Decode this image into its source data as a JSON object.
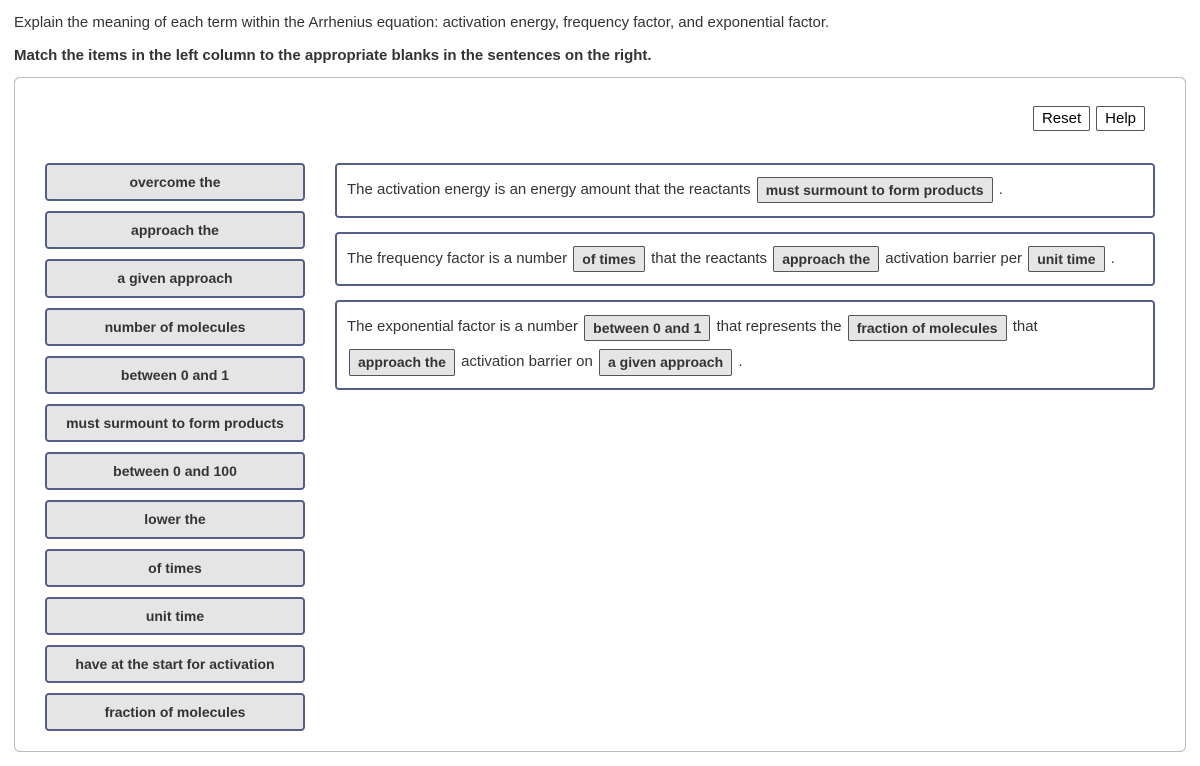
{
  "intro": {
    "line1": "Explain the meaning of each term within the Arrhenius equation: activation energy, frequency factor, and exponential factor.",
    "line2": "Match the items in the left column to the appropriate blanks in the sentences on the right."
  },
  "toolbar": {
    "reset": "Reset",
    "help": "Help"
  },
  "dragItems": [
    "overcome the",
    "approach the",
    "a given approach",
    "number of molecules",
    "between 0 and 1",
    "must surmount to form products",
    "between 0 and 100",
    "lower the",
    "of times",
    "unit time",
    "have at the start for activation",
    "fraction of molecules"
  ],
  "sentences": {
    "s1": {
      "t1": "The activation energy is an energy amount that the reactants ",
      "b1": "must surmount to form products",
      "t2": " ."
    },
    "s2": {
      "t1": "The frequency factor is a number ",
      "b1": "of times",
      "t2": " that the reactants ",
      "b2": "approach the",
      "t3": " activation barrier per ",
      "b3": "unit time",
      "t4": " ."
    },
    "s3": {
      "t1": "The exponential factor is a number ",
      "b1": "between 0 and 1",
      "t2": " that represents the ",
      "b2": "fraction of molecules",
      "t3": " that ",
      "b3": "approach the",
      "t4": " activation barrier on ",
      "b4": "a given approach",
      "t5": " ."
    }
  }
}
